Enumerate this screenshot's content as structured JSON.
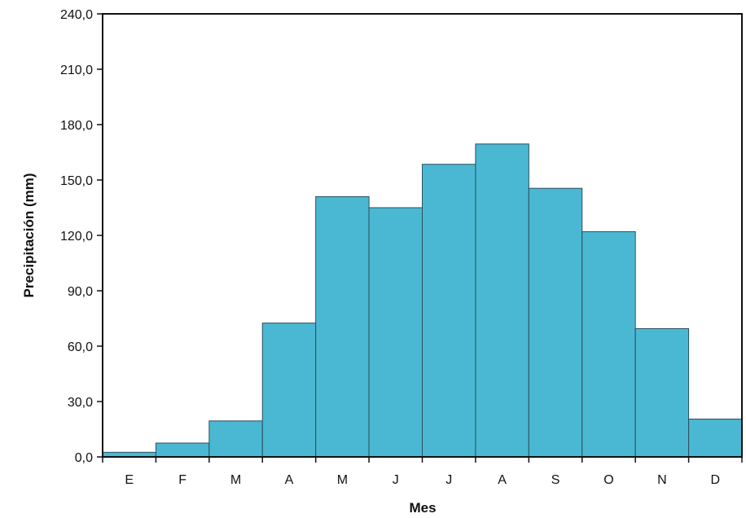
{
  "chart_data": {
    "type": "bar",
    "title": "",
    "xlabel": "Mes",
    "ylabel": "Precipitación (mm)",
    "categories": [
      "E",
      "F",
      "M",
      "A",
      "M",
      "J",
      "J",
      "A",
      "S",
      "O",
      "N",
      "D"
    ],
    "values": [
      2.5,
      7.5,
      19.5,
      72.5,
      141.0,
      135.0,
      158.5,
      169.5,
      145.5,
      122.0,
      69.5,
      20.5
    ],
    "ylim": [
      0,
      240
    ],
    "yticks": [
      0,
      30,
      60,
      90,
      120,
      150,
      180,
      210,
      240
    ],
    "ytick_labels": [
      "0,0",
      "30,0",
      "60,0",
      "90,0",
      "120,0",
      "150,0",
      "180,0",
      "210,0",
      "240,0"
    ],
    "bar_color": "#4ab8d3",
    "bar_edge_color": "#2b4f5c",
    "grid": false,
    "legend": "none"
  }
}
